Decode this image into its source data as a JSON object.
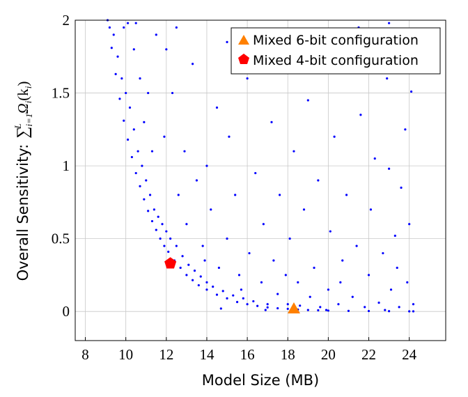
{
  "chart_data": {
    "type": "scatter",
    "title": "",
    "xlabel": "Model Size (MB)",
    "ylabel": {
      "text": "Overall Sensitivity:",
      "sum": "∑",
      "sub": "i=1",
      "sup": "L",
      "term": "Ω",
      "term_sub": "i",
      "arg": "(k",
      "arg_sub": "i",
      "close": ")"
    },
    "xlim": [
      7.5,
      25.8
    ],
    "ylim": [
      -0.2,
      2
    ],
    "xticks": [
      "8",
      "10",
      "12",
      "14",
      "16",
      "18",
      "20",
      "22",
      "24"
    ],
    "yticks": [
      "0",
      "0.5",
      "1",
      "1.5",
      "2"
    ],
    "grid": true,
    "legend_position": "top-right",
    "series": [
      {
        "name": "",
        "marker": "dot",
        "color": "#0000ff",
        "points": [
          [
            9.1,
            2.0
          ],
          [
            9.3,
            1.81
          ],
          [
            9.5,
            1.63
          ],
          [
            9.7,
            1.46
          ],
          [
            9.9,
            1.31
          ],
          [
            10.1,
            1.18
          ],
          [
            10.3,
            1.06
          ],
          [
            10.5,
            0.95
          ],
          [
            10.7,
            0.86
          ],
          [
            10.9,
            0.77
          ],
          [
            11.1,
            0.69
          ],
          [
            11.3,
            0.62
          ],
          [
            11.5,
            0.56
          ],
          [
            11.7,
            0.5
          ],
          [
            11.9,
            0.45
          ],
          [
            12.1,
            0.41
          ],
          [
            12.4,
            0.35
          ],
          [
            12.7,
            0.3
          ],
          [
            13.0,
            0.25
          ],
          [
            13.3,
            0.215
          ],
          [
            13.6,
            0.18
          ],
          [
            14.0,
            0.15
          ],
          [
            14.5,
            0.115
          ],
          [
            15.0,
            0.09
          ],
          [
            15.5,
            0.065
          ],
          [
            16.0,
            0.05
          ],
          [
            16.5,
            0.038
          ],
          [
            17.0,
            0.028
          ],
          [
            17.5,
            0.022
          ],
          [
            18.0,
            0.018
          ],
          [
            18.5,
            0.013
          ],
          [
            19.0,
            0.01
          ],
          [
            19.5,
            0.008
          ],
          [
            20.0,
            0.006
          ],
          [
            21.0,
            0.004
          ],
          [
            22.0,
            0.003
          ],
          [
            23.0,
            0.002
          ],
          [
            24.0,
            0.001
          ],
          [
            24.2,
            0.001
          ],
          [
            9.2,
            1.95
          ],
          [
            9.4,
            1.9
          ],
          [
            9.6,
            1.75
          ],
          [
            9.8,
            1.6
          ],
          [
            9.9,
            1.95
          ],
          [
            10.0,
            1.5
          ],
          [
            10.2,
            1.4
          ],
          [
            10.4,
            1.25
          ],
          [
            10.4,
            1.8
          ],
          [
            10.6,
            1.1
          ],
          [
            10.7,
            1.6
          ],
          [
            10.8,
            1.0
          ],
          [
            10.9,
            1.3
          ],
          [
            11.0,
            0.9
          ],
          [
            11.1,
            1.5
          ],
          [
            11.2,
            0.8
          ],
          [
            11.3,
            1.1
          ],
          [
            11.4,
            0.7
          ],
          [
            11.5,
            1.9
          ],
          [
            11.6,
            0.65
          ],
          [
            11.8,
            0.6
          ],
          [
            11.9,
            1.2
          ],
          [
            12.0,
            1.8
          ],
          [
            12.0,
            0.55
          ],
          [
            12.2,
            0.5
          ],
          [
            12.3,
            1.5
          ],
          [
            12.5,
            0.45
          ],
          [
            12.6,
            0.8
          ],
          [
            12.8,
            0.38
          ],
          [
            12.9,
            1.1
          ],
          [
            13.0,
            0.6
          ],
          [
            13.1,
            0.32
          ],
          [
            13.3,
            1.7
          ],
          [
            13.4,
            0.28
          ],
          [
            13.5,
            0.9
          ],
          [
            13.7,
            0.24
          ],
          [
            13.8,
            0.45
          ],
          [
            14.0,
            0.2
          ],
          [
            14.0,
            1.0
          ],
          [
            14.2,
            0.7
          ],
          [
            14.3,
            0.17
          ],
          [
            14.5,
            1.4
          ],
          [
            14.6,
            0.3
          ],
          [
            14.8,
            0.14
          ],
          [
            15.0,
            0.5
          ],
          [
            15.1,
            1.2
          ],
          [
            15.3,
            0.11
          ],
          [
            15.4,
            0.8
          ],
          [
            15.6,
            0.25
          ],
          [
            15.8,
            0.09
          ],
          [
            16.0,
            1.6
          ],
          [
            16.1,
            0.4
          ],
          [
            16.3,
            0.07
          ],
          [
            16.4,
            0.95
          ],
          [
            16.7,
            0.2
          ],
          [
            16.8,
            0.6
          ],
          [
            17.0,
            0.05
          ],
          [
            17.2,
            1.3
          ],
          [
            17.3,
            0.35
          ],
          [
            17.5,
            0.12
          ],
          [
            17.6,
            0.8
          ],
          [
            17.8,
            1.8
          ],
          [
            18.0,
            0.05
          ],
          [
            18.1,
            0.5
          ],
          [
            18.3,
            1.1
          ],
          [
            18.5,
            0.2
          ],
          [
            18.6,
            0.04
          ],
          [
            18.8,
            0.7
          ],
          [
            19.0,
            1.45
          ],
          [
            19.1,
            0.1
          ],
          [
            19.3,
            0.3
          ],
          [
            19.5,
            0.9
          ],
          [
            19.6,
            0.03
          ],
          [
            19.8,
            1.7
          ],
          [
            20.0,
            0.15
          ],
          [
            20.1,
            0.55
          ],
          [
            20.3,
            1.2
          ],
          [
            20.5,
            0.05
          ],
          [
            20.7,
            0.35
          ],
          [
            20.9,
            0.8
          ],
          [
            21.0,
            1.9
          ],
          [
            21.2,
            0.1
          ],
          [
            21.4,
            0.45
          ],
          [
            21.6,
            1.35
          ],
          [
            21.8,
            0.03
          ],
          [
            22.0,
            0.25
          ],
          [
            22.1,
            0.7
          ],
          [
            22.3,
            1.05
          ],
          [
            22.5,
            0.06
          ],
          [
            22.7,
            0.4
          ],
          [
            22.9,
            1.6
          ],
          [
            23.0,
            0.98
          ],
          [
            23.1,
            0.15
          ],
          [
            23.3,
            0.52
          ],
          [
            23.5,
            0.03
          ],
          [
            23.6,
            0.85
          ],
          [
            23.8,
            1.25
          ],
          [
            23.9,
            0.2
          ],
          [
            24.0,
            0.6
          ],
          [
            24.1,
            1.51
          ],
          [
            24.2,
            0.05
          ],
          [
            10.1,
            1.98
          ],
          [
            10.5,
            1.98
          ],
          [
            12.5,
            1.95
          ],
          [
            15.0,
            1.85
          ],
          [
            21.5,
            1.95
          ],
          [
            23.0,
            1.98
          ],
          [
            14.7,
            0.02
          ],
          [
            16.9,
            0.01
          ],
          [
            19.9,
            0.01
          ],
          [
            22.8,
            0.01
          ],
          [
            13.9,
            0.35
          ],
          [
            15.7,
            0.15
          ],
          [
            17.9,
            0.25
          ],
          [
            20.6,
            0.2
          ],
          [
            23.4,
            0.3
          ]
        ]
      }
    ],
    "highlights": [
      {
        "name": "Mixed 6-bit configuration",
        "marker": "triangle",
        "color": "#ff8000",
        "x": 18.3,
        "y": 0.02
      },
      {
        "name": "Mixed 4-bit configuration",
        "marker": "pentagon",
        "color": "#ff0000",
        "x": 12.2,
        "y": 0.33
      }
    ]
  }
}
